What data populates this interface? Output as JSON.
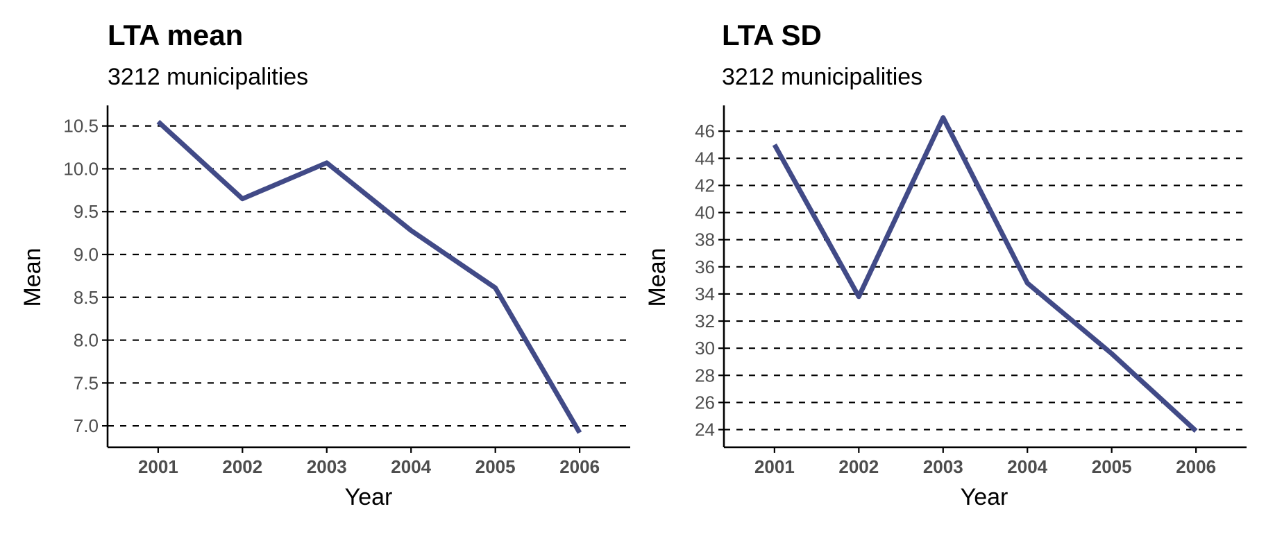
{
  "chart_data": [
    {
      "type": "line",
      "title": "LTA mean",
      "subtitle": "3212 municipalities",
      "xlabel": "Year",
      "ylabel": "Mean",
      "x": [
        2001,
        2002,
        2003,
        2004,
        2005,
        2006
      ],
      "x_tick_labels": [
        "2001",
        "2002",
        "2003",
        "2004",
        "2005",
        "2006"
      ],
      "y_ticks": [
        7.0,
        7.5,
        8.0,
        8.5,
        9.0,
        9.5,
        10.0,
        10.5
      ],
      "y_tick_labels": [
        "7.0",
        "7.5",
        "8.0",
        "8.5",
        "9.0",
        "9.5",
        "10.0",
        "10.5"
      ],
      "xlim": [
        2000.4,
        2006.6
      ],
      "ylim": [
        6.75,
        10.74
      ],
      "series": [
        {
          "values": [
            10.55,
            9.65,
            10.07,
            9.28,
            8.61,
            6.92
          ]
        }
      ],
      "grid": "horizontal dashed",
      "legend": "none"
    },
    {
      "type": "line",
      "title": "LTA SD",
      "subtitle": "3212 municipalities",
      "xlabel": "Year",
      "ylabel": "Mean",
      "x": [
        2001,
        2002,
        2003,
        2004,
        2005,
        2006
      ],
      "x_tick_labels": [
        "2001",
        "2002",
        "2003",
        "2004",
        "2005",
        "2006"
      ],
      "y_ticks": [
        24,
        26,
        28,
        30,
        32,
        34,
        36,
        38,
        40,
        42,
        44,
        46
      ],
      "y_tick_labels": [
        "24",
        "26",
        "28",
        "30",
        "32",
        "34",
        "36",
        "38",
        "40",
        "42",
        "44",
        "46"
      ],
      "xlim": [
        2000.4,
        2006.6
      ],
      "ylim": [
        22.7,
        47.9
      ],
      "series": [
        {
          "values": [
            45.0,
            33.8,
            47.0,
            34.8,
            29.6,
            23.9
          ]
        }
      ],
      "grid": "horizontal dashed",
      "legend": "none"
    }
  ],
  "colors": {
    "series": "#414a87",
    "axis": "#000000",
    "tick_label": "#4d4d4d"
  }
}
